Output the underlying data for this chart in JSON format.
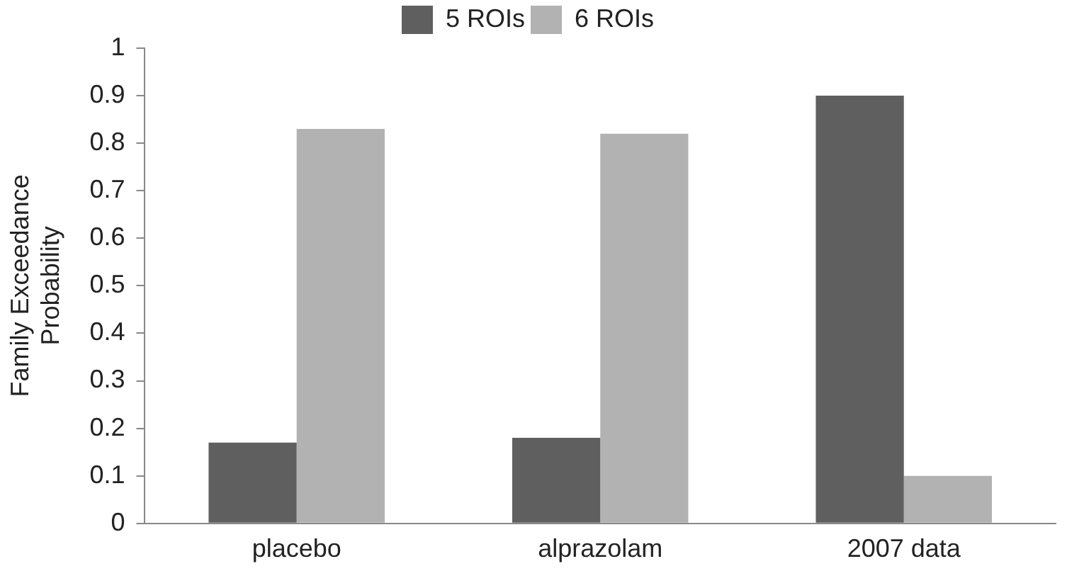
{
  "chart_data": {
    "type": "bar",
    "ylabel": "Family Exceedance Probability",
    "categories": [
      "placebo",
      "alprazolam",
      "2007 data"
    ],
    "series": [
      {
        "name": "5 ROIs",
        "color": "#5f5f5f",
        "values": [
          0.17,
          0.18,
          0.9
        ]
      },
      {
        "name": "6 ROIs",
        "color": "#b2b2b2",
        "values": [
          0.83,
          0.82,
          0.1
        ]
      }
    ],
    "ylim": [
      0,
      1
    ],
    "yticks": [
      0,
      0.1,
      0.2,
      0.3,
      0.4,
      0.5,
      0.6,
      0.7,
      0.8,
      0.9,
      1
    ],
    "grid": false,
    "legend": "top"
  }
}
